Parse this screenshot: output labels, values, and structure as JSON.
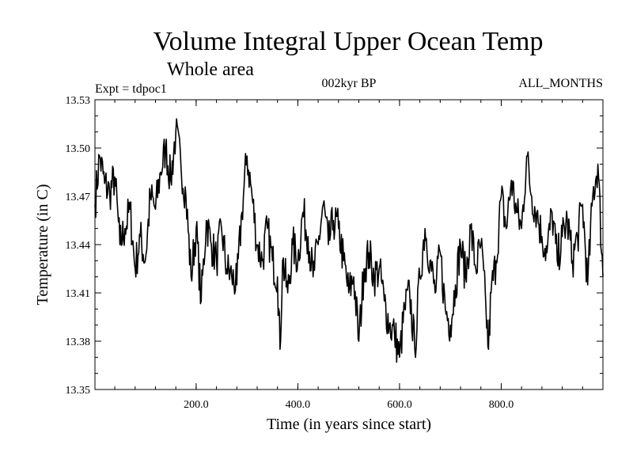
{
  "chart_data": {
    "type": "line",
    "title": "Volume Integral Upper Ocean Temp",
    "subtitle": "Whole area",
    "annotations": {
      "left": "Expt = tdpoc1",
      "center": "002kyr BP",
      "right": "ALL_MONTHS"
    },
    "xlabel": "Time (in years since start)",
    "ylabel": "Temperature (in C)",
    "xlim": [
      1,
      1000
    ],
    "ylim": [
      13.35,
      13.53
    ],
    "xticks": [
      200,
      400,
      600,
      800
    ],
    "xtick_labels": [
      "200.0",
      "400.0",
      "600.0",
      "800.0"
    ],
    "yticks": [
      13.35,
      13.38,
      13.41,
      13.44,
      13.47,
      13.5,
      13.53
    ],
    "ytick_labels": [
      "13.35",
      "13.38",
      "13.41",
      "13.44",
      "13.47",
      "13.50",
      "13.53"
    ],
    "series": [
      {
        "name": "Volume integral upper ocean temperature",
        "x": [
          1,
          10,
          20,
          30,
          40,
          50,
          60,
          70,
          80,
          90,
          100,
          110,
          120,
          130,
          140,
          150,
          160,
          170,
          180,
          190,
          200,
          210,
          220,
          230,
          240,
          250,
          260,
          270,
          280,
          290,
          300,
          310,
          320,
          330,
          340,
          350,
          360,
          365,
          370,
          380,
          390,
          400,
          410,
          420,
          430,
          440,
          450,
          460,
          470,
          480,
          490,
          500,
          510,
          520,
          530,
          540,
          550,
          560,
          570,
          580,
          590,
          600,
          610,
          620,
          630,
          640,
          650,
          660,
          670,
          680,
          690,
          700,
          710,
          720,
          730,
          740,
          750,
          760,
          770,
          775,
          780,
          790,
          800,
          810,
          820,
          830,
          840,
          850,
          860,
          870,
          880,
          890,
          900,
          910,
          920,
          930,
          940,
          950,
          960,
          970,
          980,
          990,
          1000
        ],
        "values": [
          13.465,
          13.495,
          13.478,
          13.472,
          13.482,
          13.44,
          13.45,
          13.462,
          13.425,
          13.445,
          13.43,
          13.47,
          13.462,
          13.485,
          13.5,
          13.48,
          13.51,
          13.49,
          13.47,
          13.42,
          13.45,
          13.405,
          13.455,
          13.44,
          13.43,
          13.45,
          13.425,
          13.42,
          13.415,
          13.46,
          13.495,
          13.47,
          13.44,
          13.43,
          13.45,
          13.43,
          13.42,
          13.375,
          13.43,
          13.41,
          13.44,
          13.43,
          13.46,
          13.445,
          13.42,
          13.44,
          13.465,
          13.44,
          13.455,
          13.45,
          13.43,
          13.41,
          13.42,
          13.38,
          13.425,
          13.435,
          13.42,
          13.425,
          13.405,
          13.39,
          13.385,
          13.37,
          13.4,
          13.41,
          13.375,
          13.42,
          13.45,
          13.43,
          13.41,
          13.435,
          13.4,
          13.39,
          13.415,
          13.44,
          13.42,
          13.45,
          13.425,
          13.44,
          13.4,
          13.375,
          13.41,
          13.43,
          13.47,
          13.45,
          13.48,
          13.46,
          13.45,
          13.495,
          13.47,
          13.46,
          13.445,
          13.435,
          13.46,
          13.43,
          13.445,
          13.455,
          13.43,
          13.445,
          13.465,
          13.415,
          13.47,
          13.49,
          13.42
        ]
      }
    ]
  }
}
